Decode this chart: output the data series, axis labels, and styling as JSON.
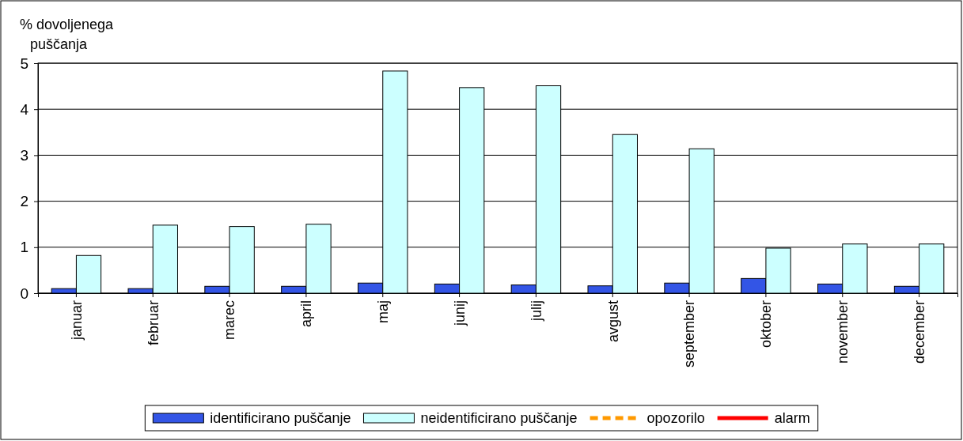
{
  "chart_data": {
    "type": "bar",
    "ylabel": "% dovoljenega puščanja",
    "categories": [
      "januar",
      "februar",
      "marec",
      "april",
      "maj",
      "junij",
      "julij",
      "avgust",
      "september",
      "oktober",
      "november",
      "december"
    ],
    "series": [
      {
        "name": "identificirano puščanje",
        "color": "#3355e6",
        "values": [
          0.1,
          0.1,
          0.15,
          0.15,
          0.22,
          0.2,
          0.18,
          0.16,
          0.22,
          0.32,
          0.2,
          0.15
        ]
      },
      {
        "name": "neidentificirano puščanje",
        "color": "#ccffff",
        "values": [
          0.82,
          1.48,
          1.45,
          1.5,
          4.83,
          4.47,
          4.51,
          3.45,
          3.14,
          0.98,
          1.07,
          1.07
        ]
      },
      {
        "name": "opozorilo",
        "type": "line",
        "color": "#ff9900",
        "line_style": "dashed",
        "values": [
          null,
          null,
          null,
          null,
          null,
          null,
          null,
          null,
          null,
          null,
          null,
          null
        ]
      },
      {
        "name": "alarm",
        "type": "line",
        "color": "#ff0000",
        "line_style": "solid",
        "values": [
          null,
          null,
          null,
          null,
          null,
          null,
          null,
          null,
          null,
          null,
          null,
          null
        ]
      }
    ],
    "ylim": [
      0,
      5
    ],
    "yticks": [
      0,
      1,
      2,
      3,
      4,
      5
    ],
    "grid": "y",
    "legend": "bottom"
  }
}
